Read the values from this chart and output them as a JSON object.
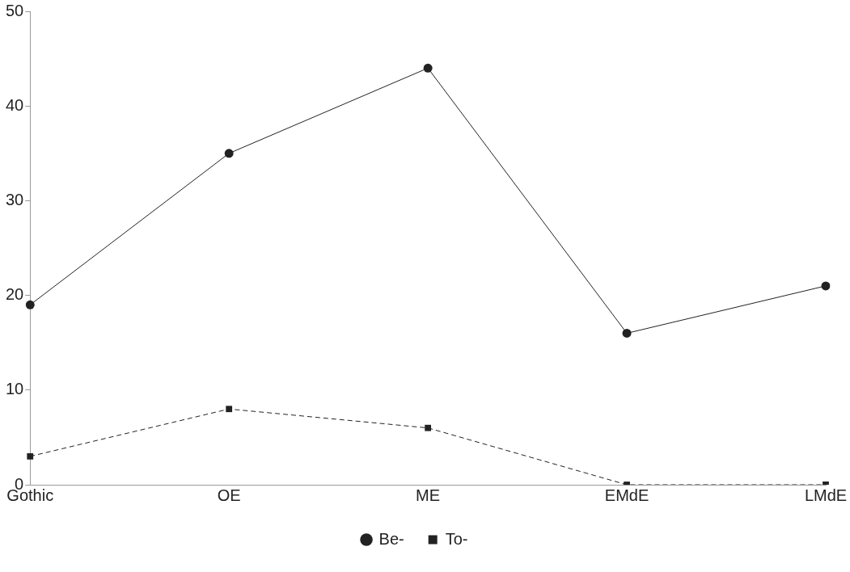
{
  "chart_data": {
    "type": "line",
    "categories": [
      "Gothic",
      "OE",
      "ME",
      "EMdE",
      "LMdE"
    ],
    "series": [
      {
        "name": "Be-",
        "color": "#222222",
        "values": [
          19,
          35,
          44,
          16,
          21
        ],
        "marker": "circle",
        "line_style": "solid"
      },
      {
        "name": "To-",
        "color": "#222222",
        "values": [
          3,
          8,
          6,
          0,
          0
        ],
        "marker": "square",
        "line_style": "dashed"
      }
    ],
    "ylim": [
      0,
      50
    ],
    "yticks": [
      0,
      10,
      20,
      30,
      40,
      50
    ],
    "grid": false,
    "legend": "bottom"
  }
}
